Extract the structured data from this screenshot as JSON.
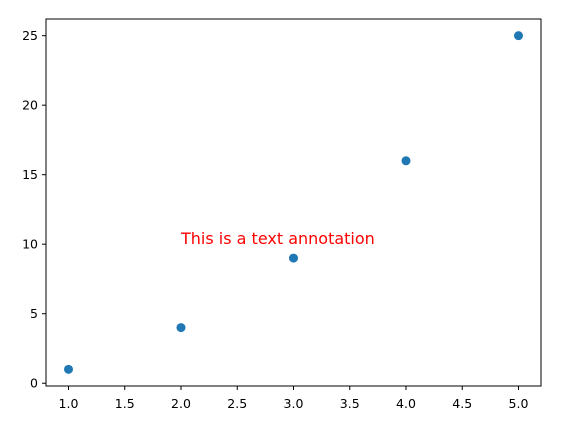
{
  "chart_data": {
    "type": "scatter",
    "title": "",
    "xlabel": "",
    "ylabel": "",
    "x": [
      1,
      2,
      3,
      4,
      5
    ],
    "y": [
      1,
      4,
      9,
      16,
      25
    ],
    "xlim": [
      0.8,
      5.2
    ],
    "ylim": [
      -0.2,
      26.2
    ],
    "xticks": [
      1.0,
      1.5,
      2.0,
      2.5,
      3.0,
      3.5,
      4.0,
      4.5,
      5.0
    ],
    "xtick_labels": [
      "1.0",
      "1.5",
      "2.0",
      "2.5",
      "3.0",
      "3.5",
      "4.0",
      "4.5",
      "5.0"
    ],
    "yticks": [
      0,
      5,
      10,
      15,
      20,
      25
    ],
    "ytick_labels": [
      "0",
      "5",
      "10",
      "15",
      "20",
      "25"
    ],
    "grid": false,
    "marker_color": "#1f77b4",
    "annotation": {
      "text": "This is a text annotation",
      "x": 2,
      "y": 10,
      "color": "#ff0000"
    }
  }
}
